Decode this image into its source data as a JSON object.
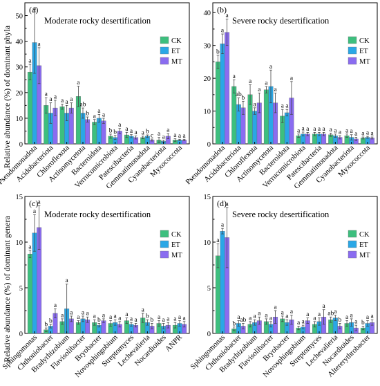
{
  "figure": {
    "y_label_top": "Relative abundance (%) of dominant phyla",
    "y_label_bottom": "Relative abundance (%) of dominant genera"
  },
  "legend": [
    {
      "name": "CK",
      "color": "#3dbf7e"
    },
    {
      "name": "ET",
      "color": "#2aa7e6"
    },
    {
      "name": "MT",
      "color": "#8a6cf0"
    }
  ],
  "chart_data": [
    {
      "panel": "(a)",
      "type": "bar",
      "title": "Moderate rocky desertification",
      "ylim": [
        0,
        55
      ],
      "yticks": [
        0,
        10,
        20,
        30,
        40,
        50
      ],
      "categories": [
        "Pseudomonadota",
        "Acidobacteriota",
        "Chloroflexota",
        "Actinomycetota",
        "Bacteroidota",
        "Verrucomicrobiota",
        "Patescibacteria",
        "Gemmatimonadota",
        "Cyanobacteriota",
        "Myxococcota"
      ],
      "series": [
        {
          "name": "CK",
          "values": [
            28,
            15,
            14.5,
            18.5,
            8.5,
            3,
            3.5,
            2.5,
            1.5,
            1.5
          ],
          "errors": [
            3,
            3,
            1,
            4,
            1,
            0.8,
            1,
            0.5,
            1,
            0.5
          ],
          "letters": [
            "a",
            "a",
            "a",
            "a",
            "a",
            "b",
            "a",
            "a",
            "a",
            "a"
          ]
        },
        {
          "name": "ET",
          "values": [
            39.5,
            12,
            12,
            12,
            10,
            2.5,
            3,
            3,
            1,
            1.5
          ],
          "errors": [
            12,
            4,
            3,
            2,
            1.5,
            0.8,
            0.6,
            0.5,
            0.4,
            0.3
          ],
          "letters": [
            "a",
            "a",
            "a",
            "ab",
            "a",
            "b",
            "a",
            "b",
            "a",
            "a"
          ]
        },
        {
          "name": "MT",
          "values": [
            30.5,
            14,
            14,
            9.5,
            9,
            5,
            2.5,
            1.5,
            3,
            1.5
          ],
          "errors": [
            7,
            3,
            2,
            1,
            1,
            1,
            0.6,
            0.4,
            1,
            0.3
          ],
          "letters": [
            "a",
            "a",
            "a",
            "b",
            "a",
            "a",
            "a",
            "c",
            "a",
            "a"
          ]
        }
      ]
    },
    {
      "panel": "(b)",
      "type": "bar",
      "title": "Severe rocky desertification",
      "ylim": [
        0,
        43
      ],
      "yticks": [
        0,
        10,
        20,
        30,
        40
      ],
      "categories": [
        "Pseudomonadota",
        "Acidobacteriota",
        "Chloroflexota",
        "Actinomycetota",
        "Bacteroidota",
        "Verrucomicrobiota",
        "Patescibacteria",
        "Gemmatimonadota",
        "Cyanobacteriota",
        "Myxococcota"
      ],
      "series": [
        {
          "name": "CK",
          "values": [
            25,
            17.5,
            15,
            16.5,
            8.5,
            2.5,
            3,
            2.8,
            2.5,
            1.8
          ],
          "errors": [
            2,
            2,
            3,
            1,
            2,
            0.5,
            0.5,
            0.5,
            0.5,
            0.3
          ],
          "letters": [
            "b",
            "a",
            "a",
            "a",
            "a",
            "a",
            "a",
            "a",
            "a",
            "a"
          ]
        },
        {
          "name": "ET",
          "values": [
            30.5,
            12,
            10,
            17.5,
            9.5,
            3,
            3,
            2.5,
            2,
            2
          ],
          "errors": [
            3,
            2,
            1,
            5,
            1,
            0.6,
            0.5,
            0.5,
            0.8,
            0.3
          ],
          "letters": [
            "a",
            "ab",
            "a",
            "a",
            "a",
            "a",
            "a",
            "a",
            "a",
            "a"
          ]
        },
        {
          "name": "MT",
          "values": [
            34,
            11,
            12.5,
            12.5,
            14,
            3,
            3,
            2,
            1.5,
            1.8
          ],
          "errors": [
            4,
            2,
            3,
            3,
            5,
            0.5,
            0.5,
            0.5,
            0.5,
            0.3
          ],
          "letters": [
            "a",
            "b",
            "a",
            "a",
            "a",
            "a",
            "a",
            "a",
            "a",
            "a"
          ]
        }
      ]
    },
    {
      "panel": "(c)",
      "type": "bar",
      "title": "Moderate rocky desertification",
      "ylim": [
        0,
        15
      ],
      "yticks": [
        0,
        5,
        10,
        15
      ],
      "categories": [
        "Sphingomonas",
        "Chthoniobacter",
        "Bradyrhizobium",
        "Flavisolibacter",
        "Bryobacter",
        "Novosphingobium",
        "Streptomyces",
        "Lechevalieria",
        "Nocardioides",
        "ANPR"
      ],
      "series": [
        {
          "name": "CK",
          "values": [
            8.7,
            0.4,
            1.3,
            1.2,
            1.2,
            1.1,
            1.4,
            1.7,
            1.1,
            0.9
          ],
          "errors": [
            0.4,
            0.2,
            0.3,
            0.2,
            0.3,
            0.3,
            0.3,
            0.5,
            0.3,
            0.3
          ],
          "letters": [
            "a",
            "b",
            "a",
            "a",
            "a",
            "a",
            "a",
            "a",
            "a",
            "a"
          ]
        },
        {
          "name": "ET",
          "values": [
            11,
            0.8,
            2.7,
            1.6,
            0.9,
            1.2,
            1,
            1.2,
            0.8,
            1.1
          ],
          "errors": [
            2,
            0.2,
            2.7,
            0.3,
            0.2,
            0.3,
            0.2,
            0.3,
            0.3,
            0.3
          ],
          "letters": [
            "a",
            "b",
            "a",
            "a",
            "b",
            "a",
            "a",
            "b",
            "a",
            "a"
          ]
        },
        {
          "name": "MT",
          "values": [
            11.6,
            2.2,
            1.6,
            1.5,
            1.4,
            1,
            0.9,
            0.8,
            0.9,
            1
          ],
          "errors": [
            2.4,
            0.5,
            0.3,
            0.3,
            0.2,
            0.3,
            0.2,
            0.3,
            0.3,
            0.3
          ],
          "letters": [
            "a",
            "a",
            "a",
            "a",
            "a",
            "a",
            "a",
            "b",
            "a",
            "a"
          ]
        }
      ]
    },
    {
      "panel": "(d)",
      "type": "bar",
      "title": "Severe rocky desertification",
      "ylim": [
        0,
        15
      ],
      "yticks": [
        0,
        5,
        10,
        15
      ],
      "categories": [
        "Sphingomonas",
        "Chthoniobacter",
        "Bradyrhizobium",
        "Flavisolibacter",
        "Bryobacter",
        "Novosphingobium",
        "Streptomyces",
        "Lechevalieria",
        "Nocardioides",
        "Altererythrobacter"
      ],
      "series": [
        {
          "name": "CK",
          "values": [
            8.5,
            0.5,
            1,
            1.3,
            1.6,
            0.6,
            1,
            1.5,
            1.1,
            0.6
          ],
          "errors": [
            1.3,
            0.2,
            0.3,
            0.3,
            0.3,
            0.2,
            0.3,
            0.3,
            0.3,
            0.2
          ],
          "letters": [
            "a",
            "b",
            "a",
            "a",
            "a",
            "a",
            "a",
            "ab",
            "a",
            "b"
          ]
        },
        {
          "name": "ET",
          "values": [
            11.2,
            1.1,
            1.2,
            1,
            1.2,
            0.7,
            1.3,
            1.7,
            1.2,
            1.1
          ],
          "errors": [
            0.3,
            0.3,
            0.3,
            0.3,
            0.3,
            0.2,
            0.4,
            0.3,
            0.4,
            0.3
          ],
          "letters": [
            "a",
            "a",
            "a",
            "a",
            "a",
            "a",
            "a",
            "a",
            "a",
            "a"
          ]
        },
        {
          "name": "MT",
          "values": [
            10.5,
            0.8,
            1.4,
            1.8,
            1.5,
            1.4,
            1.8,
            0.8,
            0.6,
            1.2
          ],
          "errors": [
            3.3,
            0.3,
            0.4,
            0.7,
            0.5,
            0.3,
            0.8,
            0.3,
            0.3,
            0.3
          ],
          "letters": [
            "a",
            "ab",
            "a",
            "a",
            "a",
            "a",
            "a",
            "b",
            "a",
            "a"
          ]
        }
      ]
    }
  ]
}
